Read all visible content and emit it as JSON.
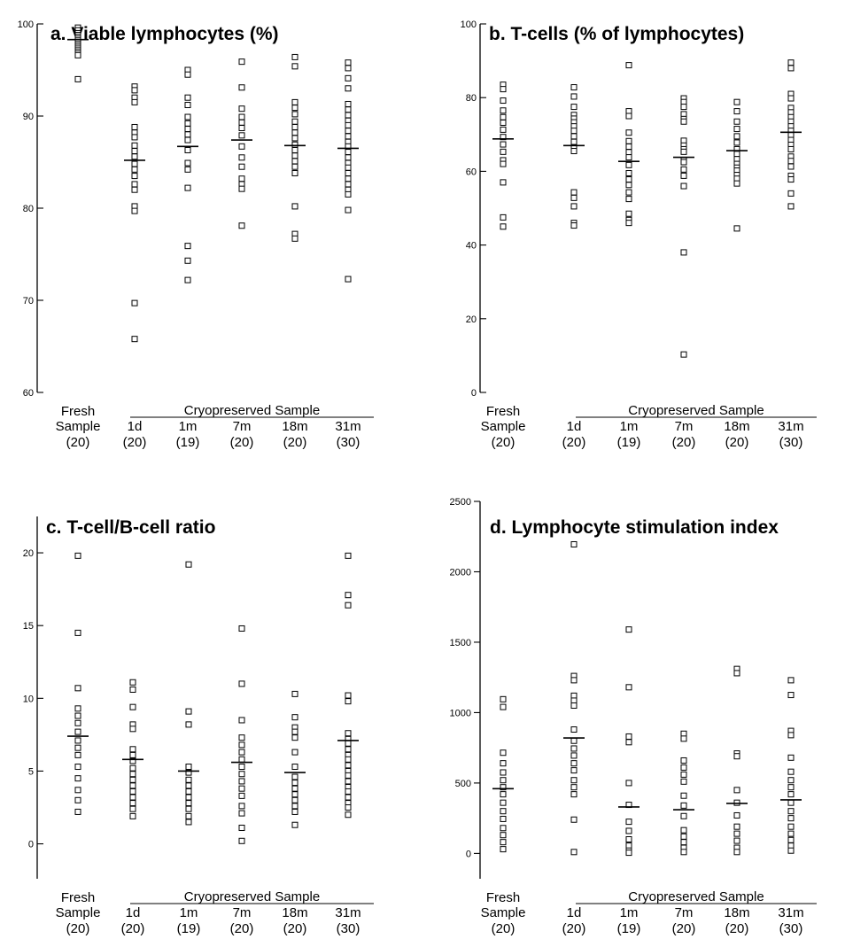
{
  "chart_data": [
    {
      "type": "scatter",
      "title": "a.  Viable lymphocytes (%)",
      "ylim": [
        60,
        100
      ],
      "yticks": [
        60,
        70,
        80,
        90,
        100
      ],
      "groups": [
        {
          "label": "Fresh",
          "label2": "Sample",
          "n": "(20)",
          "mean": 98.3,
          "values": [
            99.6,
            99.3,
            99.0,
            98.8,
            98.6,
            98.4,
            98.2,
            98.0,
            97.8,
            97.6,
            97.4,
            97.2,
            97.0,
            96.8,
            96.6,
            94.0
          ]
        },
        {
          "label": "1d",
          "n": "(20)",
          "mean": 85.2,
          "values": [
            93.2,
            92.8,
            92.0,
            91.5,
            88.8,
            88.2,
            87.7,
            86.8,
            86.2,
            85.6,
            84.8,
            84.2,
            83.5,
            82.6,
            82.0,
            80.2,
            79.7,
            69.7,
            65.8
          ]
        },
        {
          "label": "1m",
          "n": "(19)",
          "mean": 86.7,
          "values": [
            95.0,
            94.5,
            92.0,
            91.2,
            89.9,
            89.2,
            88.6,
            88.0,
            87.4,
            86.3,
            84.9,
            84.2,
            82.2,
            75.9,
            74.3,
            72.2
          ]
        },
        {
          "label": "7m",
          "n": "(20)",
          "mean": 87.4,
          "values": [
            95.9,
            93.1,
            90.8,
            89.9,
            89.3,
            88.7,
            87.9,
            86.7,
            85.5,
            84.5,
            83.2,
            82.6,
            82.1,
            78.1
          ]
        },
        {
          "label": "18m",
          "n": "(20)",
          "mean": 86.8,
          "values": [
            96.4,
            95.4,
            91.5,
            90.9,
            90.2,
            89.4,
            88.8,
            88.2,
            87.6,
            86.9,
            86.3,
            85.7,
            85.1,
            84.5,
            83.8,
            80.2,
            77.2,
            76.7
          ]
        },
        {
          "label": "31m",
          "n": "(30)",
          "mean": 86.5,
          "values": [
            95.8,
            95.2,
            94.1,
            93.0,
            91.3,
            90.7,
            90.1,
            89.5,
            89.0,
            88.4,
            87.8,
            87.2,
            86.7,
            86.1,
            85.5,
            84.9,
            84.4,
            83.8,
            83.2,
            82.6,
            82.0,
            81.5,
            79.8,
            72.3
          ]
        }
      ]
    },
    {
      "type": "scatter",
      "title": "b.  T-cells (% of lymphocytes)",
      "ylim": [
        0,
        100
      ],
      "yticks": [
        0,
        20,
        40,
        60,
        80,
        100
      ],
      "groups": [
        {
          "label": "Fresh",
          "label2": "Sample",
          "n": "(20)",
          "mean": 68.8,
          "values": [
            83.5,
            82.3,
            79.2,
            76.5,
            74.7,
            73.2,
            71.3,
            69.3,
            67.3,
            65.3,
            63.0,
            62.0,
            57.0,
            47.5,
            45.0
          ]
        },
        {
          "label": "1d",
          "n": "(20)",
          "mean": 67.0,
          "values": [
            82.8,
            80.3,
            77.5,
            75.3,
            74.3,
            73.3,
            72.2,
            71.0,
            69.5,
            68.0,
            66.5,
            65.5,
            54.3,
            52.8,
            50.5,
            46.0,
            45.3
          ]
        },
        {
          "label": "1m",
          "n": "(19)",
          "mean": 62.7,
          "values": [
            88.8,
            76.3,
            75.0,
            70.5,
            68.2,
            66.7,
            65.2,
            63.8,
            61.7,
            59.5,
            57.8,
            56.3,
            54.3,
            52.5,
            48.5,
            46.8,
            46.0
          ]
        },
        {
          "label": "7m",
          "n": "(20)",
          "mean": 63.8,
          "values": [
            79.8,
            78.8,
            77.5,
            75.5,
            74.2,
            73.5,
            68.3,
            67.0,
            66.0,
            65.3,
            63.0,
            62.5,
            60.5,
            58.8,
            56.0,
            38.0,
            10.3
          ]
        },
        {
          "label": "18m",
          "n": "(20)",
          "mean": 65.6,
          "values": [
            78.8,
            76.3,
            73.5,
            71.5,
            69.5,
            67.8,
            66.0,
            64.7,
            63.3,
            62.0,
            61.0,
            60.2,
            59.0,
            58.0,
            56.7,
            44.5
          ]
        },
        {
          "label": "31m",
          "n": "(30)",
          "mean": 70.6,
          "values": [
            89.5,
            88.0,
            81.0,
            79.8,
            77.2,
            76.0,
            74.7,
            73.5,
            72.2,
            71.0,
            69.8,
            68.5,
            67.2,
            66.0,
            64.0,
            62.8,
            61.3,
            58.8,
            57.8,
            54.0,
            50.5
          ]
        }
      ]
    },
    {
      "type": "scatter",
      "title": "c.  T-cell/B-cell ratio",
      "ylim": [
        -2.4,
        22.5
      ],
      "yticks": [
        0,
        5,
        10,
        15,
        20
      ],
      "groups": [
        {
          "label": "Fresh",
          "label2": "Sample",
          "n": "(20)",
          "mean": 7.4,
          "values": [
            19.8,
            14.5,
            10.7,
            9.3,
            8.8,
            8.3,
            7.7,
            7.1,
            6.6,
            6.1,
            5.3,
            4.5,
            3.7,
            3.0,
            2.2
          ]
        },
        {
          "label": "1d",
          "n": "(20)",
          "mean": 5.8,
          "values": [
            11.1,
            10.6,
            9.4,
            8.2,
            7.9,
            6.5,
            6.1,
            5.7,
            5.2,
            4.8,
            4.4,
            4.0,
            3.6,
            3.2,
            2.8,
            2.4,
            1.9
          ]
        },
        {
          "label": "1m",
          "n": "(19)",
          "mean": 5.0,
          "values": [
            19.2,
            9.1,
            8.2,
            5.3,
            4.9,
            4.4,
            4.0,
            3.6,
            3.2,
            2.8,
            2.4,
            1.9,
            1.5
          ]
        },
        {
          "label": "7m",
          "n": "(20)",
          "mean": 5.6,
          "values": [
            14.8,
            11.0,
            8.5,
            7.3,
            6.8,
            6.3,
            5.8,
            5.3,
            4.8,
            4.3,
            3.8,
            3.3,
            2.6,
            2.1,
            1.1,
            0.2
          ]
        },
        {
          "label": "18m",
          "n": "(20)",
          "mean": 4.9,
          "values": [
            10.3,
            8.7,
            8.0,
            7.7,
            7.3,
            6.3,
            5.3,
            4.6,
            4.2,
            3.8,
            3.4,
            3.0,
            2.6,
            2.2,
            1.3
          ]
        },
        {
          "label": "31m",
          "n": "(30)",
          "mean": 7.1,
          "values": [
            19.8,
            17.1,
            16.4,
            10.2,
            9.8,
            7.6,
            7.2,
            6.9,
            6.5,
            6.1,
            5.8,
            5.4,
            5.0,
            4.7,
            4.3,
            3.9,
            3.6,
            3.2,
            2.8,
            2.5,
            2.0
          ]
        }
      ]
    },
    {
      "type": "scatter",
      "title": "d.  Lymphocyte stimulation index",
      "ylim": [
        -180,
        2500
      ],
      "yticks": [
        0,
        500,
        1000,
        1500,
        2000,
        2500
      ],
      "groups": [
        {
          "label": "Fresh",
          "label2": "Sample",
          "n": "(20)",
          "mean": 460,
          "values": [
            1095,
            1040,
            715,
            640,
            575,
            520,
            470,
            420,
            360,
            300,
            245,
            180,
            130,
            80,
            30
          ]
        },
        {
          "label": "1d",
          "n": "(20)",
          "mean": 820,
          "values": [
            2195,
            1260,
            1230,
            1120,
            1085,
            1050,
            880,
            800,
            745,
            695,
            640,
            590,
            520,
            470,
            420,
            240,
            10
          ]
        },
        {
          "label": "1m",
          "n": "(19)",
          "mean": 330,
          "values": [
            1590,
            1180,
            830,
            790,
            500,
            345,
            225,
            160,
            100,
            55,
            20,
            5
          ]
        },
        {
          "label": "7m",
          "n": "(20)",
          "mean": 310,
          "values": [
            850,
            815,
            660,
            610,
            560,
            510,
            410,
            340,
            265,
            165,
            120,
            80,
            40,
            10
          ]
        },
        {
          "label": "18m",
          "n": "(20)",
          "mean": 355,
          "values": [
            1310,
            1280,
            710,
            690,
            450,
            360,
            270,
            190,
            140,
            90,
            40,
            10
          ]
        },
        {
          "label": "31m",
          "n": "(30)",
          "mean": 380,
          "values": [
            1230,
            1125,
            870,
            840,
            680,
            580,
            520,
            470,
            420,
            360,
            300,
            250,
            190,
            140,
            95,
            55,
            20
          ]
        }
      ]
    }
  ],
  "cryo_label": "Cryopreserved Sample"
}
